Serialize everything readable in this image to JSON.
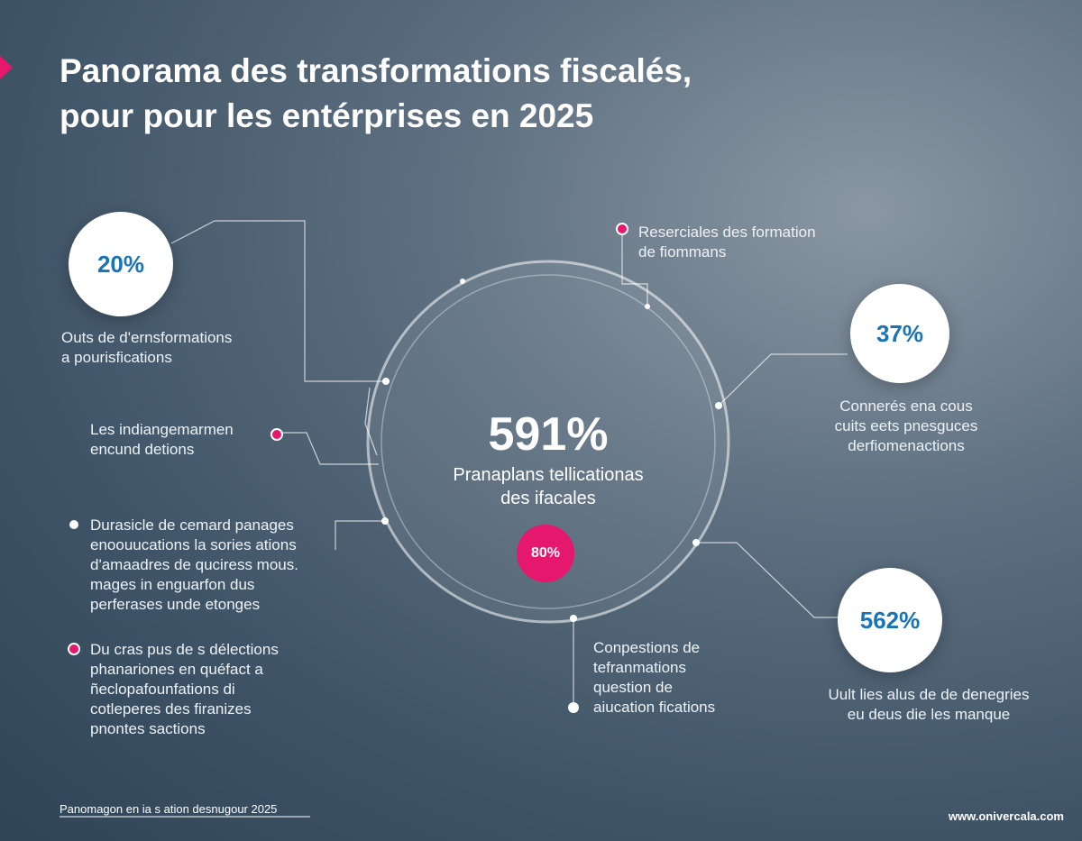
{
  "title": [
    "Panorama des transformations fiscalés,",
    "pour pour les entérprises en 2025"
  ],
  "center": {
    "value": "591%",
    "label": [
      "Pranaplans tellicationas",
      "des ifacales"
    ],
    "badge": "80%"
  },
  "stats": [
    {
      "value": "20%",
      "label": [
        "Outs de d'ernsformations",
        "a pourisfications"
      ]
    },
    {
      "value": "37%",
      "label": [
        "Connerés ena cous",
        "cuits eets pnesguces",
        "derfiomenactions"
      ]
    },
    {
      "value": "562%",
      "label": [
        "Uult lies alus de de denegries",
        "eu deus die les manque"
      ]
    }
  ],
  "notes": [
    {
      "lines": [
        "Reserciales des formation",
        "de fiommans"
      ]
    },
    {
      "lines": [
        "Les indiangemarmen",
        "encund detions"
      ]
    },
    {
      "lines": [
        "Durasicle de cemard panages",
        "enoouucations la sories ations",
        "d'amaadres de quciress mous.",
        "mages in enguarfon dus",
        "perferases unde etonges"
      ]
    },
    {
      "lines": [
        "Du cras pus de s délections",
        "phanariones en quéfact a",
        "ñeclopafounfations di",
        "cotleperes des firanizes",
        "pnontes sactions"
      ]
    },
    {
      "lines": [
        "Conpestions de",
        "tefranmations",
        "question de",
        "aiucation fications"
      ]
    }
  ],
  "footer": {
    "caption": "Panomagon en ia s ation desnugour 2025",
    "url": "www.onivercala.com"
  }
}
